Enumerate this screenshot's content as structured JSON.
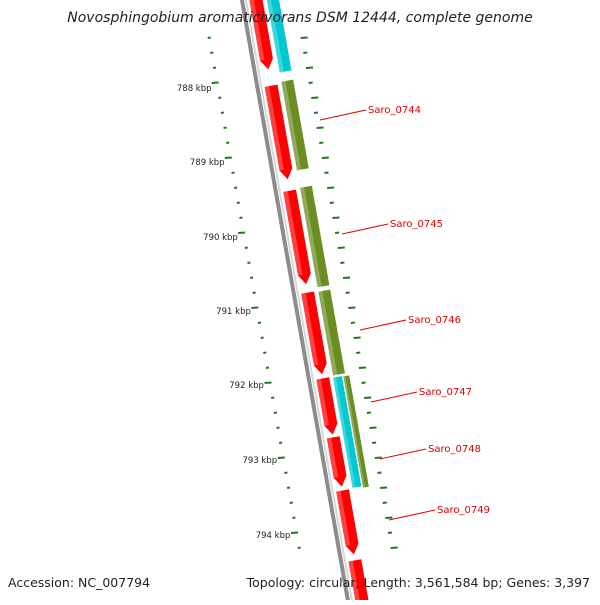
{
  "title": "Novosphingobium aromaticivorans DSM 12444, complete genome",
  "footer": {
    "accession": "Accession: NC_007794",
    "summary": "Topology: circular; Length: 3,561,584 bp; Genes: 3,397"
  },
  "scale_labels": [
    "788 kbp",
    "789 kbp",
    "790 kbp",
    "791 kbp",
    "792 kbp",
    "793 kbp",
    "794 kbp"
  ],
  "gene_labels": [
    "Saro_0744",
    "Saro_0745",
    "Saro_0746",
    "Saro_0747",
    "Saro_0748",
    "Saro_0749"
  ],
  "colors": {
    "cds_red": "#ff0000",
    "feature_olive": "#6b8e23",
    "feature_cyan": "#00c8d2",
    "backbone": "#8c8c8c",
    "tick_green": "#1f7a1f",
    "label_red": "#e00000"
  }
}
